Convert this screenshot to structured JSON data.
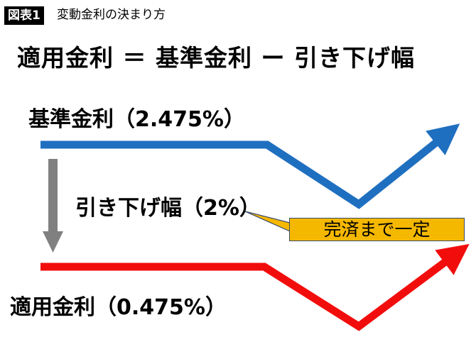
{
  "header": {
    "badge": "図表1",
    "subtitle": "変動金利の決まり方"
  },
  "formula": "適用金利 ＝ 基準金利 ー 引き下げ幅",
  "labels": {
    "base_rate": "基準金利（2.475%）",
    "reduction": "引き下げ幅（2%）",
    "applied_rate": "適用金利（0.475%）"
  },
  "callout": "完済まで一定",
  "colors": {
    "base_line": "#1F6FC0",
    "applied_line": "#F20D0D",
    "reduction_arrow": "#808080",
    "callout_fill": "#F5B800"
  }
}
